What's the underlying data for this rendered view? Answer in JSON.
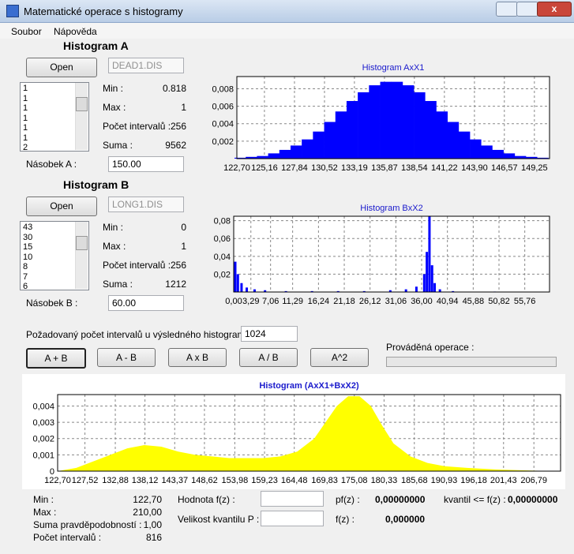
{
  "window": {
    "title": "Matematické operace s histogramy"
  },
  "menu": [
    "Soubor",
    "Nápověda"
  ],
  "histogram_a": {
    "heading": "Histogram A",
    "open_button": "Open",
    "file": "DEAD1.DIS",
    "list": [
      "1",
      "1",
      "1",
      "1",
      "1",
      "1",
      "2"
    ],
    "stats": [
      {
        "label": "Min :",
        "value": "0.818"
      },
      {
        "label": "Max :",
        "value": "1"
      },
      {
        "label": "Počet intervalů :",
        "value": "256"
      },
      {
        "label": "Suma :",
        "value": "9562"
      }
    ],
    "multiplier_label": "Násobek A :",
    "multiplier": "150.00",
    "chart": {
      "type": "bar",
      "title": "Histogram AxX1",
      "color": "#0000ff",
      "grid": true,
      "x": [
        123,
        124,
        125,
        126,
        127,
        128,
        129,
        130,
        131,
        132,
        133,
        134,
        135,
        136,
        137,
        138,
        139,
        140,
        141,
        142,
        143,
        144,
        145,
        146,
        147,
        148,
        149,
        150
      ],
      "values": [
        0.0001,
        0.0002,
        0.0003,
        0.0006,
        0.001,
        0.0015,
        0.0022,
        0.0031,
        0.0042,
        0.0054,
        0.0066,
        0.0076,
        0.0084,
        0.0088,
        0.0088,
        0.0084,
        0.0076,
        0.0066,
        0.0054,
        0.0042,
        0.0031,
        0.0022,
        0.0015,
        0.001,
        0.0006,
        0.0003,
        0.0002,
        0.0001
      ],
      "xlim": [
        122.7,
        150.6
      ],
      "ylim": [
        0,
        0.0094
      ],
      "xticks": [
        {
          "value": 122.7,
          "label": "122,70"
        },
        {
          "value": 125.16,
          "label": "125,16"
        },
        {
          "value": 127.84,
          "label": "127,84"
        },
        {
          "value": 130.52,
          "label": "130,52"
        },
        {
          "value": 133.19,
          "label": "133,19"
        },
        {
          "value": 135.87,
          "label": "135,87"
        },
        {
          "value": 138.54,
          "label": "138,54"
        },
        {
          "value": 141.22,
          "label": "141,22"
        },
        {
          "value": 143.9,
          "label": "143,90"
        },
        {
          "value": 146.57,
          "label": "146,57"
        },
        {
          "value": 149.25,
          "label": "149,25"
        }
      ],
      "yticks": [
        {
          "value": 0.002,
          "label": "0,002"
        },
        {
          "value": 0.004,
          "label": "0,004"
        },
        {
          "value": 0.006,
          "label": "0,006"
        },
        {
          "value": 0.008,
          "label": "0,008"
        }
      ]
    }
  },
  "histogram_b": {
    "heading": "Histogram B",
    "open_button": "Open",
    "file": "LONG1.DIS",
    "list": [
      "43",
      "30",
      "15",
      "10",
      "8",
      "7",
      "6"
    ],
    "stats": [
      {
        "label": "Min :",
        "value": "0"
      },
      {
        "label": "Max :",
        "value": "1"
      },
      {
        "label": "Počet intervalů :",
        "value": "256"
      },
      {
        "label": "Suma :",
        "value": "1212"
      }
    ],
    "multiplier_label": "Násobek B :",
    "multiplier": "60.00",
    "chart": {
      "type": "bar",
      "title": "Histogram BxX2",
      "color": "#0000ff",
      "grid": true,
      "x": [
        0.3,
        0.8,
        1.5,
        2.5,
        4,
        6,
        10,
        15,
        20,
        25,
        30,
        33,
        35,
        36.5,
        37,
        37.5,
        38,
        38.5,
        39.5,
        42,
        50,
        58
      ],
      "values": [
        0.034,
        0.02,
        0.01,
        0.005,
        0.003,
        0.002,
        0.001,
        0.001,
        0.001,
        0.001,
        0.002,
        0.003,
        0.006,
        0.02,
        0.045,
        0.085,
        0.03,
        0.01,
        0.003,
        0.001,
        0.0005,
        0.0003
      ],
      "xlim": [
        0,
        60.5
      ],
      "ylim": [
        0,
        0.085
      ],
      "xticks": [
        {
          "value": 0,
          "label": "0,00"
        },
        {
          "value": 3.29,
          "label": "3,29"
        },
        {
          "value": 7.06,
          "label": "7,06"
        },
        {
          "value": 11.29,
          "label": "11,29"
        },
        {
          "value": 16.24,
          "label": "16,24"
        },
        {
          "value": 21.18,
          "label": "21,18"
        },
        {
          "value": 26.12,
          "label": "26,12"
        },
        {
          "value": 31.06,
          "label": "31,06"
        },
        {
          "value": 36,
          "label": "36,00"
        },
        {
          "value": 40.94,
          "label": "40,94"
        },
        {
          "value": 45.88,
          "label": "45,88"
        },
        {
          "value": 50.82,
          "label": "50,82"
        },
        {
          "value": 55.76,
          "label": "55,76"
        }
      ],
      "yticks": [
        {
          "value": 0.02,
          "label": "0,02"
        },
        {
          "value": 0.04,
          "label": "0,04"
        },
        {
          "value": 0.06,
          "label": "0,06"
        },
        {
          "value": 0.08,
          "label": "0,08"
        }
      ]
    }
  },
  "intervals_label": "Požadovaný počet intervalů u výsledného histogramu :",
  "intervals": "1024",
  "operations": [
    "A + B",
    "A - B",
    "A x B",
    "A / B",
    "A^2"
  ],
  "operation_label": "Prováděná operace :",
  "result_chart": {
    "type": "area",
    "title": "Histogram (AxX1+BxX2)",
    "color": "#ffff00",
    "grid": true,
    "x": [
      123,
      126,
      129,
      132,
      135,
      138,
      141,
      144,
      147,
      150,
      153,
      156,
      159,
      162,
      165,
      168,
      170,
      172,
      174,
      176,
      178,
      180,
      182,
      185,
      188,
      191,
      195,
      200,
      205,
      210
    ],
    "values": [
      2e-05,
      0.0002,
      0.0006,
      0.001,
      0.0014,
      0.0016,
      0.0015,
      0.0012,
      0.001,
      0.0009,
      0.0008,
      0.0008,
      0.0008,
      0.0009,
      0.0012,
      0.002,
      0.003,
      0.004,
      0.0046,
      0.0046,
      0.004,
      0.0028,
      0.0017,
      0.0009,
      0.0005,
      0.0003,
      0.0002,
      0.0001,
      5e-05,
      0
    ],
    "xlim": [
      122.7,
      211.5
    ],
    "ylim": [
      0,
      0.0047
    ],
    "xticks": [
      {
        "value": 122.7,
        "label": "122,70"
      },
      {
        "value": 127.52,
        "label": "127,52"
      },
      {
        "value": 132.88,
        "label": "132,88"
      },
      {
        "value": 138.12,
        "label": "138,12"
      },
      {
        "value": 143.37,
        "label": "143,37"
      },
      {
        "value": 148.62,
        "label": "148,62"
      },
      {
        "value": 153.98,
        "label": "153,98"
      },
      {
        "value": 159.23,
        "label": "159,23"
      },
      {
        "value": 164.48,
        "label": "164,48"
      },
      {
        "value": 169.83,
        "label": "169,83"
      },
      {
        "value": 175.08,
        "label": "175,08"
      },
      {
        "value": 180.33,
        "label": "180,33"
      },
      {
        "value": 185.68,
        "label": "185,68"
      },
      {
        "value": 190.93,
        "label": "190,93"
      },
      {
        "value": 196.18,
        "label": "196,18"
      },
      {
        "value": 201.43,
        "label": "201,43"
      },
      {
        "value": 206.79,
        "label": "206,79"
      }
    ],
    "yticks": [
      0,
      {
        "value": 0.001,
        "label": "0,001"
      },
      {
        "value": 0.002,
        "label": "0,002"
      },
      {
        "value": 0.003,
        "label": "0,003"
      },
      {
        "value": 0.004,
        "label": "0,004"
      }
    ]
  },
  "result_stats": [
    {
      "label": "Min :",
      "value": "122,70"
    },
    {
      "label": "Max :",
      "value": "210,00"
    },
    {
      "label": "Suma pravděpodobností :",
      "value": "1,00"
    },
    {
      "label": "Počet intervalů :",
      "value": "816"
    }
  ],
  "fz_value_label": "Hodnota f(z) :",
  "quantile_size_label": "Velikost kvantilu P :",
  "pfz_label": "pf(z) :",
  "pfz": "0,00000000",
  "quantile_label": "kvantil <= f(z) :",
  "quantile": "0,00000000",
  "fz_label": "f(z) :",
  "fz": "0,000000"
}
